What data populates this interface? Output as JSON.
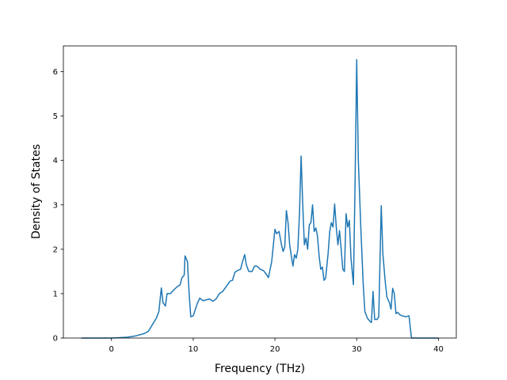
{
  "chart_data": {
    "type": "line",
    "xlabel": "Frequency (THz)",
    "ylabel": "Density of States",
    "xlim": [
      -5.885,
      42.185
    ],
    "ylim": [
      0,
      6.58
    ],
    "xticks": [
      0,
      10,
      20,
      30,
      40
    ],
    "yticks": [
      0,
      1,
      2,
      3,
      4,
      5,
      6
    ],
    "grid": false,
    "series": [
      {
        "color": "#1f77b4",
        "x": [
          -3.7,
          0,
          1,
          2,
          3,
          4,
          4.5,
          5,
          5.5,
          5.8,
          6.1,
          6.3,
          6.6,
          6.8,
          7.2,
          7.6,
          8.0,
          8.4,
          8.6,
          8.9,
          9.0,
          9.3,
          9.5,
          9.7,
          10.0,
          10.5,
          10.8,
          11.2,
          11.6,
          12.0,
          12.4,
          12.8,
          13.2,
          13.6,
          14.0,
          14.5,
          14.8,
          15.1,
          15.4,
          15.8,
          16.0,
          16.3,
          16.5,
          16.8,
          17.2,
          17.5,
          17.8,
          18.2,
          18.6,
          19.0,
          19.2,
          19.6,
          20.0,
          20.2,
          20.5,
          20.8,
          21.0,
          21.2,
          21.4,
          21.6,
          21.8,
          22.0,
          22.2,
          22.4,
          22.6,
          22.8,
          23.0,
          23.2,
          23.4,
          23.6,
          23.8,
          24.0,
          24.2,
          24.4,
          24.6,
          24.8,
          25.0,
          25.2,
          25.4,
          25.6,
          25.8,
          26.0,
          26.2,
          26.5,
          26.7,
          26.9,
          27.1,
          27.3,
          27.5,
          27.7,
          27.9,
          28.1,
          28.3,
          28.5,
          28.7,
          28.9,
          29.1,
          29.3,
          29.6,
          29.8,
          30.0,
          30.2,
          30.5,
          30.8,
          31.0,
          31.3,
          31.6,
          31.8,
          32.0,
          32.2,
          32.5,
          32.7,
          33.0,
          33.2,
          33.5,
          33.7,
          34.0,
          34.2,
          34.4,
          34.6,
          34.8,
          35.0,
          35.3,
          35.6,
          36.0,
          36.4,
          36.7,
          40
        ],
        "values": [
          0,
          0,
          0.01,
          0.02,
          0.05,
          0.1,
          0.15,
          0.3,
          0.45,
          0.6,
          1.13,
          0.8,
          0.72,
          1.0,
          1.0,
          1.08,
          1.15,
          1.2,
          1.35,
          1.42,
          1.85,
          1.72,
          1.0,
          0.48,
          0.5,
          0.78,
          0.9,
          0.84,
          0.86,
          0.88,
          0.83,
          0.88,
          1.0,
          1.05,
          1.15,
          1.28,
          1.3,
          1.48,
          1.52,
          1.55,
          1.7,
          1.88,
          1.65,
          1.5,
          1.5,
          1.62,
          1.62,
          1.55,
          1.52,
          1.42,
          1.36,
          1.72,
          2.45,
          2.35,
          2.4,
          2.1,
          1.95,
          2.05,
          2.87,
          2.6,
          2.1,
          1.85,
          1.62,
          1.88,
          1.8,
          2.0,
          2.8,
          4.1,
          3.0,
          2.1,
          2.25,
          2.0,
          2.55,
          2.6,
          3.0,
          2.4,
          2.48,
          2.3,
          1.85,
          1.55,
          1.6,
          1.3,
          1.35,
          1.9,
          2.4,
          2.6,
          2.5,
          3.02,
          2.5,
          2.1,
          2.42,
          2.0,
          1.55,
          1.5,
          2.8,
          2.5,
          2.65,
          1.8,
          1.2,
          3.5,
          6.27,
          4.0,
          2.5,
          1.2,
          0.6,
          0.45,
          0.38,
          0.35,
          1.05,
          0.42,
          0.42,
          0.48,
          2.98,
          1.9,
          1.25,
          0.92,
          0.8,
          0.65,
          1.12,
          1.0,
          0.55,
          0.58,
          0.52,
          0.5,
          0.48,
          0.5,
          0,
          0
        ]
      }
    ]
  }
}
